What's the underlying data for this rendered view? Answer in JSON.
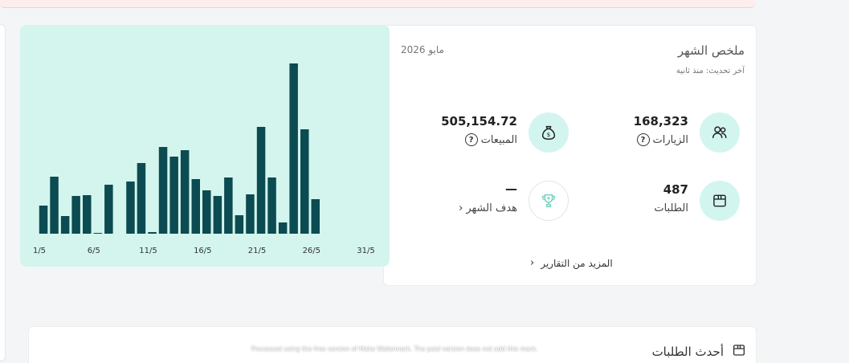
{
  "summary": {
    "title": "ملخص الشهر",
    "updated": "آخر تحديث: منذ ثانية",
    "month": "مايو 2026",
    "stats": {
      "visits": {
        "value": "168,323",
        "label": "الزيارات",
        "icon": "users-icon",
        "help": "?"
      },
      "sales": {
        "value": "505,154.72",
        "label": "المبيعات",
        "icon": "money-bag-icon",
        "help": "?"
      },
      "orders": {
        "value": "487",
        "label": "الطلبات",
        "icon": "box-icon"
      },
      "goal": {
        "value": "—",
        "label": "هدف الشهر",
        "icon": "trophy-icon"
      }
    },
    "more_reports": "المزيد من التقارير"
  },
  "latest_orders": {
    "title": "أحدث الطلبات",
    "icon": "box-icon"
  },
  "watermark_notice": "Processed using the free version of Make Watermark. The paid version does not add this mark.",
  "colors": {
    "accent_bg": "#d3f5ef",
    "bar": "#0c4b52",
    "chart_bg": "#d3f5ee"
  },
  "chart_data": {
    "type": "bar",
    "x": [
      1,
      2,
      3,
      4,
      5,
      6,
      7,
      8,
      9,
      10,
      11,
      12,
      13,
      14,
      15,
      16,
      17,
      18,
      19,
      20,
      21,
      22,
      23,
      24,
      25,
      26,
      27,
      28,
      29,
      30,
      31
    ],
    "values": [
      35,
      71,
      22,
      47,
      48,
      1,
      61,
      0,
      65,
      88,
      2,
      108,
      96,
      104,
      68,
      54,
      47,
      70,
      23,
      49,
      133,
      70,
      14,
      212,
      130,
      43,
      0,
      0,
      0,
      0,
      0
    ],
    "tick_labels": [
      "1/5",
      "6/5",
      "11/5",
      "16/5",
      "21/5",
      "26/5",
      "31/5"
    ],
    "tick_days": [
      1,
      6,
      11,
      16,
      21,
      26,
      31
    ],
    "xlabel": "",
    "ylabel": "",
    "ylim": [
      0,
      220
    ],
    "grid": false
  }
}
